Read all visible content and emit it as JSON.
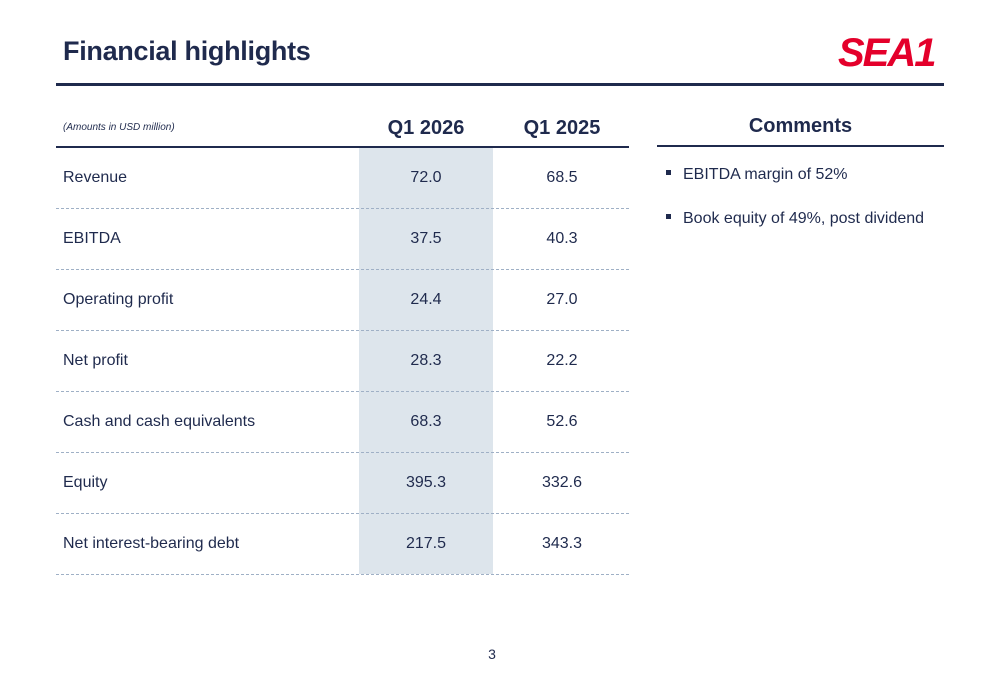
{
  "header": {
    "title": "Financial highlights",
    "logo_text": "SEA1",
    "logo_color": "#e4002b"
  },
  "table": {
    "note": "(Amounts in USD million)",
    "columns": [
      "Q1 2026",
      "Q1 2025"
    ],
    "highlight_color": "#dde5ec",
    "rows": [
      {
        "label": "Revenue",
        "values": [
          "72.0",
          "68.5"
        ]
      },
      {
        "label": "EBITDA",
        "values": [
          "37.5",
          "40.3"
        ]
      },
      {
        "label": "Operating profit",
        "values": [
          "24.4",
          "27.0"
        ]
      },
      {
        "label": "Net profit",
        "values": [
          "28.3",
          "22.2"
        ]
      },
      {
        "label": "Cash and cash equivalents",
        "values": [
          "68.3",
          "52.6"
        ]
      },
      {
        "label": "Equity",
        "values": [
          "395.3",
          "332.6"
        ]
      },
      {
        "label": "Net interest-bearing debt",
        "values": [
          "217.5",
          "343.3"
        ]
      }
    ]
  },
  "comments": {
    "heading": "Comments",
    "items": [
      "EBITDA margin of 52%",
      "Book equity of 49%, post dividend"
    ]
  },
  "footer": {
    "page_number": "3"
  },
  "colors": {
    "text": "#1f2a4d",
    "rule": "#1f2a4d",
    "dashed_rule": "#9fb0c6"
  }
}
